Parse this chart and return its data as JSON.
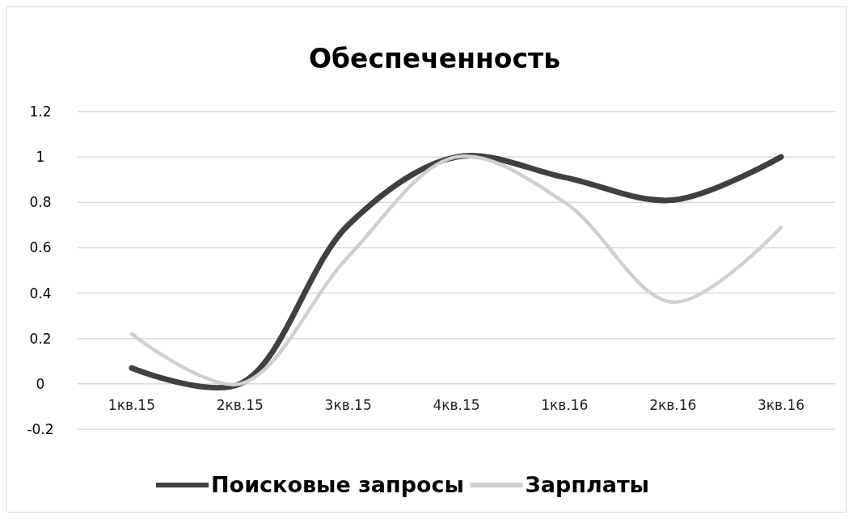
{
  "chart_data": {
    "type": "line",
    "title": "Обеспеченность",
    "categories": [
      "1кв.15",
      "2кв.15",
      "3кв.15",
      "4кв.15",
      "1кв.16",
      "2кв.16",
      "3кв.16"
    ],
    "series": [
      {
        "name": "Поисковые запросы",
        "color": "#404040",
        "values": [
          0.07,
          0,
          0.7,
          1,
          0.91,
          0.81,
          1
        ]
      },
      {
        "name": "Зарплаты",
        "color": "#d0d0d0",
        "values": [
          0.22,
          0,
          0.56,
          1,
          0.8,
          0.36,
          0.69
        ]
      }
    ],
    "ylim": [
      -0.2,
      1.2
    ],
    "yticks": [
      -0.2,
      0,
      0.2,
      0.4,
      0.6,
      0.8,
      1,
      1.2
    ],
    "grid": "y",
    "legend": "bottom",
    "line_style": "solid",
    "marker": "none"
  }
}
